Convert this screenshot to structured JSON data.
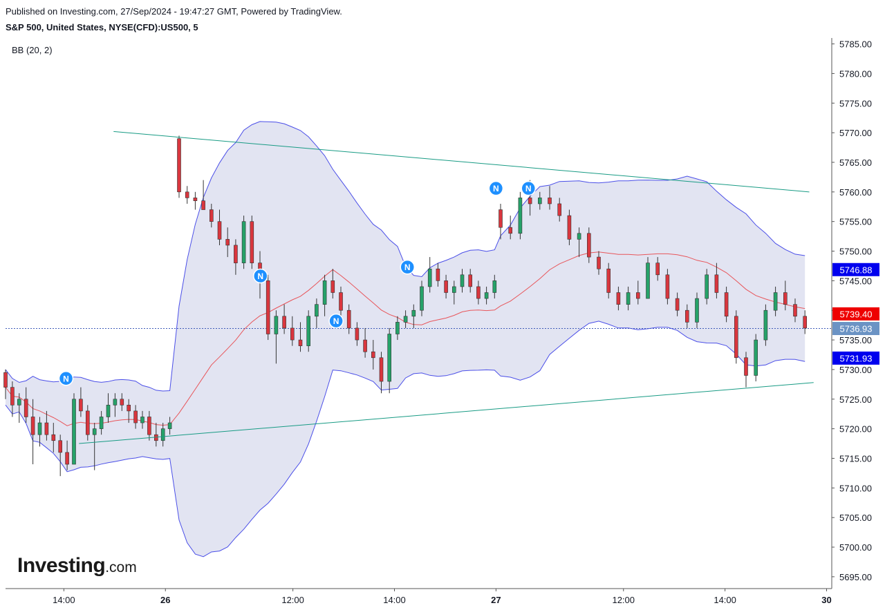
{
  "header": {
    "published": "Published on Investing.com, 27/Sep/2024 - 19:47:27 GMT, Powered by TradingView.",
    "symbol": "S&P 500, United States, NYSE(CFD):US500, 5",
    "indicator": "BB (20, 2)"
  },
  "logo": {
    "main": "Investing",
    "suffix": ".com"
  },
  "colors": {
    "up": "#26a269",
    "down": "#d9363e",
    "band_fill": "#dddff0",
    "band_line": "#4a4ee8",
    "basis": "#e8555a",
    "trendline": "#169a83",
    "badge_blue": "#1e90ff",
    "badge_red": "#f23645",
    "badge_gray": "#4f90c8"
  },
  "chart_data": {
    "type": "candlestick",
    "y_axis": {
      "min": 5693,
      "max": 5786,
      "ticks": [
        "5785.00",
        "5780.00",
        "5775.00",
        "5770.00",
        "5765.00",
        "5760.00",
        "5755.00",
        "5750.00",
        "5745.00",
        "5740.00",
        "5735.00",
        "5730.00",
        "5725.00",
        "5720.00",
        "5715.00",
        "5710.00",
        "5705.00",
        "5700.00",
        "5695.00"
      ]
    },
    "x_axis": {
      "ticks": [
        {
          "label": "14:00",
          "bold": false,
          "session_pos": 0.27
        },
        {
          "label": "26",
          "bold": true,
          "session_pos": 0.74
        },
        {
          "label": "12:00",
          "bold": false,
          "session_pos": 1.33
        },
        {
          "label": "14:00",
          "bold": false,
          "session_pos": 1.8
        },
        {
          "label": "27",
          "bold": true,
          "session_pos": 2.27
        },
        {
          "label": "12:00",
          "bold": false,
          "session_pos": 2.86
        },
        {
          "label": "14:00",
          "bold": false,
          "session_pos": 3.33
        },
        {
          "label": "30",
          "bold": true,
          "session_pos": 3.8
        }
      ]
    },
    "price_labels": [
      {
        "text": "5746.88",
        "value": 5746.88,
        "style": "blue"
      },
      {
        "text": "5739.40",
        "value": 5739.4,
        "style": "red"
      },
      {
        "text": "5736.93",
        "value": 5736.93,
        "style": "gray"
      },
      {
        "text": "5731.93",
        "value": 5731.93,
        "style": "blue"
      }
    ],
    "current_price": 5736.93,
    "news_markers": [
      {
        "text": "N",
        "session_pos": 0.28,
        "value": 5728.5
      },
      {
        "text": "N",
        "session_pos": 1.18,
        "value": 5745.8
      },
      {
        "text": "N",
        "session_pos": 1.53,
        "value": 5738.2
      },
      {
        "text": "N",
        "session_pos": 1.86,
        "value": 5747.3
      },
      {
        "text": "N",
        "session_pos": 2.27,
        "value": 5760.6
      },
      {
        "text": "N",
        "session_pos": 2.42,
        "value": 5760.6
      }
    ],
    "trendlines": [
      {
        "from": [
          0.5,
          5770.2
        ],
        "to": [
          3.72,
          5760.0
        ]
      },
      {
        "from": [
          0.34,
          5717.5
        ],
        "to": [
          3.74,
          5727.8
        ]
      }
    ],
    "candles": [
      [
        5729.5,
        5730,
        5725,
        5727
      ],
      [
        5727,
        5728,
        5722,
        5724
      ],
      [
        5724,
        5726,
        5721,
        5725
      ],
      [
        5725,
        5727,
        5721,
        5722
      ],
      [
        5722,
        5725,
        5714,
        5719
      ],
      [
        5719,
        5722,
        5717,
        5721
      ],
      [
        5721,
        5723,
        5718,
        5719
      ],
      [
        5719,
        5721,
        5716,
        5718
      ],
      [
        5718,
        5719,
        5712,
        5716
      ],
      [
        5716,
        5718,
        5713,
        5714
      ],
      [
        5714,
        5726,
        5714,
        5725
      ],
      [
        5725,
        5727,
        5722,
        5723
      ],
      [
        5723,
        5724,
        5718,
        5719
      ],
      [
        5719,
        5721,
        5713,
        5720
      ],
      [
        5720,
        5723,
        5719,
        5722
      ],
      [
        5722,
        5726,
        5721,
        5724
      ],
      [
        5724,
        5726,
        5722,
        5725
      ],
      [
        5725,
        5726,
        5723,
        5724
      ],
      [
        5724,
        5725,
        5721,
        5723
      ],
      [
        5723,
        5724,
        5720,
        5721
      ],
      [
        5721,
        5723,
        5720,
        5722
      ],
      [
        5722,
        5723,
        5718,
        5719
      ],
      [
        5719,
        5721,
        5717,
        5718
      ],
      [
        5718,
        5721,
        5717,
        5720
      ],
      [
        5720,
        5722,
        5719,
        5721
      ],
      [
        5769,
        5769.5,
        5759,
        5760
      ],
      [
        5760,
        5761,
        5758,
        5759
      ],
      [
        5759,
        5760,
        5757,
        5758.5
      ],
      [
        5758.5,
        5762,
        5757,
        5757
      ],
      [
        5757,
        5758,
        5754,
        5755
      ],
      [
        5755,
        5757,
        5751,
        5752
      ],
      [
        5752,
        5754,
        5749,
        5751
      ],
      [
        5751,
        5752,
        5746,
        5748
      ],
      [
        5748,
        5756,
        5747,
        5755
      ],
      [
        5755,
        5756,
        5747,
        5748
      ],
      [
        5748,
        5750,
        5742,
        5745
      ],
      [
        5745,
        5746,
        5735,
        5736
      ],
      [
        5736,
        5740,
        5731,
        5739
      ],
      [
        5739,
        5741,
        5736,
        5737
      ],
      [
        5737,
        5739,
        5734,
        5735
      ],
      [
        5735,
        5738,
        5733,
        5734
      ],
      [
        5734,
        5740,
        5733,
        5739
      ],
      [
        5739,
        5742,
        5737,
        5741
      ],
      [
        5741,
        5746,
        5739,
        5745
      ],
      [
        5745,
        5747,
        5742,
        5743
      ],
      [
        5743,
        5744,
        5739,
        5740
      ],
      [
        5740,
        5741,
        5736,
        5737
      ],
      [
        5737,
        5738,
        5734,
        5735
      ],
      [
        5735,
        5737,
        5732,
        5733
      ],
      [
        5733,
        5735,
        5730,
        5732
      ],
      [
        5732,
        5733,
        5726,
        5728
      ],
      [
        5728,
        5737,
        5726,
        5736
      ],
      [
        5736,
        5739,
        5735,
        5738
      ],
      [
        5738,
        5740,
        5737,
        5739
      ],
      [
        5739,
        5741,
        5737,
        5740
      ],
      [
        5740,
        5745,
        5739,
        5744
      ],
      [
        5744,
        5749,
        5743,
        5747
      ],
      [
        5747,
        5748,
        5744,
        5745
      ],
      [
        5745,
        5746,
        5742,
        5743
      ],
      [
        5743,
        5745,
        5741,
        5744
      ],
      [
        5744,
        5747,
        5743,
        5746
      ],
      [
        5746,
        5747,
        5743,
        5744
      ],
      [
        5744,
        5745,
        5741,
        5742
      ],
      [
        5742,
        5744,
        5741,
        5743
      ],
      [
        5743,
        5746,
        5742,
        5745
      ],
      [
        5757,
        5758,
        5752,
        5754
      ],
      [
        5754,
        5756,
        5752,
        5753
      ],
      [
        5753,
        5760,
        5752,
        5759
      ],
      [
        5759,
        5762,
        5756,
        5758
      ],
      [
        5758,
        5760,
        5757,
        5759
      ],
      [
        5759,
        5761,
        5757,
        5758
      ],
      [
        5758,
        5759,
        5755,
        5756
      ],
      [
        5756,
        5757,
        5751,
        5752
      ],
      [
        5752,
        5754,
        5749,
        5753
      ],
      [
        5753,
        5754,
        5748,
        5749
      ],
      [
        5749,
        5750,
        5746,
        5747
      ],
      [
        5747,
        5748,
        5742,
        5743
      ],
      [
        5743,
        5744,
        5740,
        5741
      ],
      [
        5741,
        5744,
        5740,
        5743
      ],
      [
        5743,
        5745,
        5741,
        5742
      ],
      [
        5742,
        5749,
        5742,
        5748
      ],
      [
        5748,
        5749,
        5745,
        5746
      ],
      [
        5746,
        5747,
        5741,
        5742
      ],
      [
        5742,
        5743,
        5739,
        5740
      ],
      [
        5740,
        5741,
        5737,
        5738
      ],
      [
        5738,
        5743,
        5737,
        5742
      ],
      [
        5742,
        5747,
        5741,
        5746
      ],
      [
        5746,
        5748,
        5742,
        5743
      ],
      [
        5743,
        5744,
        5738,
        5739
      ],
      [
        5739,
        5740,
        5731,
        5732
      ],
      [
        5732,
        5733,
        5727,
        5729
      ],
      [
        5729,
        5736,
        5728,
        5735
      ],
      [
        5735,
        5741,
        5734,
        5740
      ],
      [
        5740,
        5744,
        5739,
        5743
      ],
      [
        5743,
        5745,
        5740,
        5741
      ],
      [
        5741,
        5742,
        5738,
        5739
      ],
      [
        5739,
        5740,
        5736,
        5737
      ]
    ]
  }
}
